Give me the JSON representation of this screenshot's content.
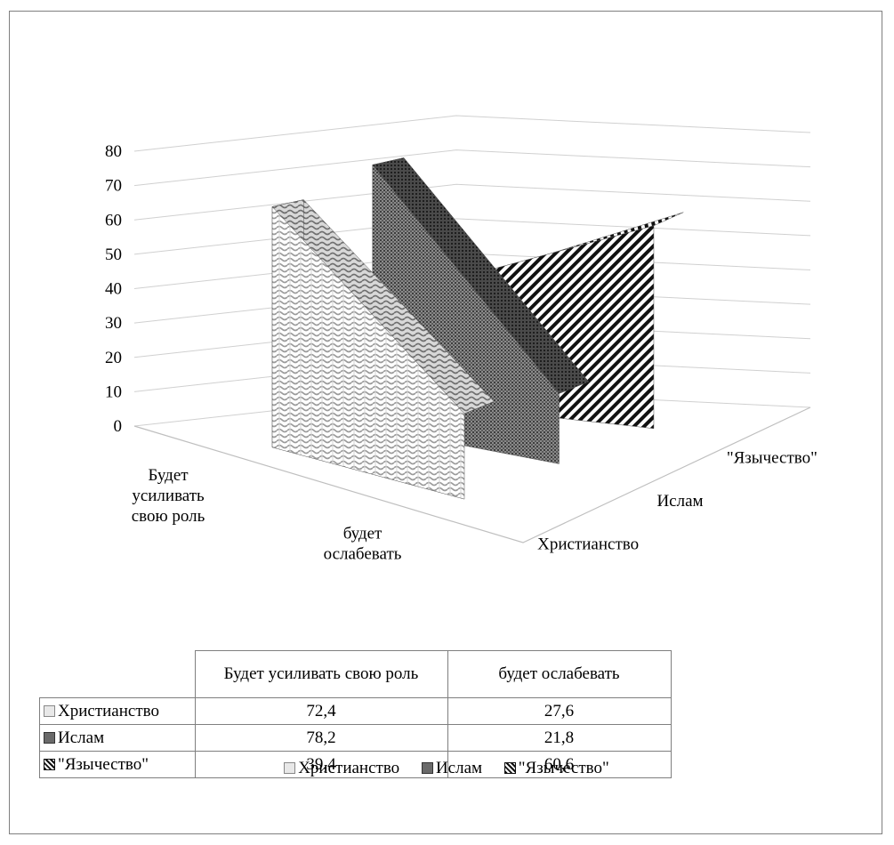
{
  "chart_data": {
    "type": "area3d",
    "categories": [
      "Будет усиливать свою роль",
      "будет ослабевать"
    ],
    "category_labels": [
      [
        "Будет",
        "усиливать",
        "свою роль"
      ],
      [
        "будет",
        "ослабевать"
      ]
    ],
    "series": [
      {
        "name": "Христианство",
        "values": [
          72.4,
          27.6
        ],
        "pattern": "weave"
      },
      {
        "name": "Ислам",
        "values": [
          78.2,
          21.8
        ],
        "pattern": "dense-dots"
      },
      {
        "name": "\"Язычество\"",
        "values": [
          39.4,
          60.6
        ],
        "pattern": "diagonal-stripes"
      }
    ],
    "ylim": [
      0,
      80
    ],
    "yticks": [
      "0",
      "10",
      "20",
      "30",
      "40",
      "50",
      "60",
      "70",
      "80"
    ],
    "series_axis_labels": [
      "Христианство",
      "Ислам",
      "\"Язычество\""
    ],
    "data_table": {
      "column_headers": [
        "Будет усиливать свою роль",
        "будет ослабевать"
      ],
      "rows": [
        {
          "label": "Христианство",
          "values": [
            "72,4",
            "27,6"
          ]
        },
        {
          "label": "Ислам",
          "values": [
            "78,2",
            "21,8"
          ]
        },
        {
          "label": "\"Язычество\"",
          "values": [
            "39,4",
            "60,6"
          ]
        }
      ]
    },
    "legend": {
      "position": "bottom",
      "items": [
        "Христианство",
        "Ислам",
        "\"Язычество\""
      ]
    },
    "grid": true
  }
}
